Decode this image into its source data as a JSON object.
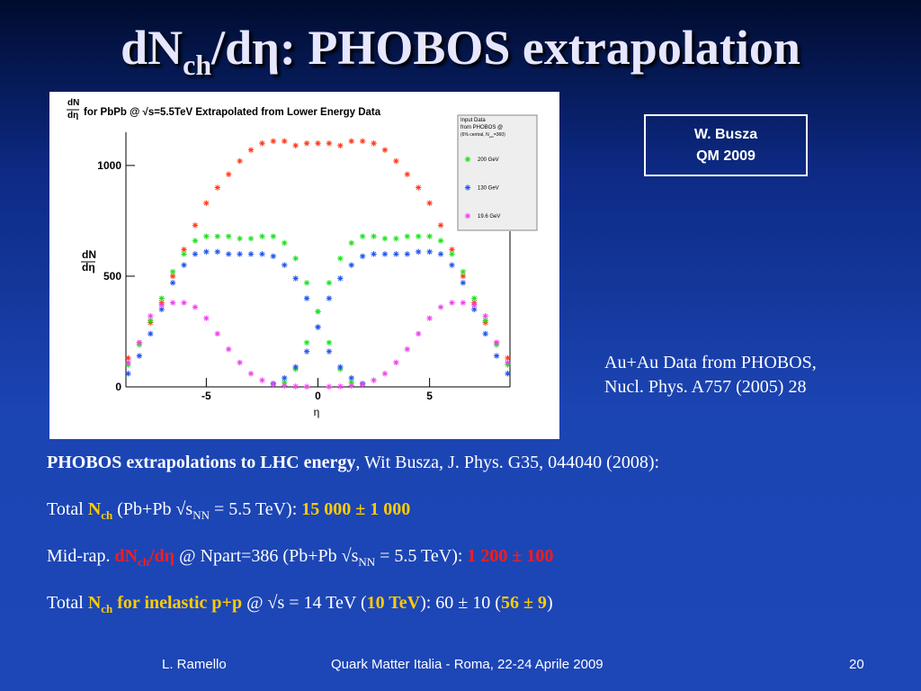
{
  "slide": {
    "title": [
      "dN",
      "ch",
      "/dη: PHOBOS extrapolation"
    ],
    "source_box": [
      "W. Busza",
      "QM 2009"
    ],
    "caption": [
      "Au+Au Data from PHOBOS,",
      "Nucl. Phys. A757 (2005) 28"
    ],
    "lines": [
      [
        "PHOBOS extrapolations to LHC energy",
        ", Wit Busza, J. Phys. G35, 044040 (2008):"
      ],
      [
        "Total ",
        "N",
        "ch",
        " (Pb+Pb √s",
        "NN",
        " = 5.5 TeV): ",
        "15 000 ± 1 000"
      ],
      [
        "Mid-rap. ",
        "dN",
        "ch",
        "/dη",
        " @ Npart=386 (Pb+Pb √s",
        "NN",
        " = 5.5 TeV): ",
        "1 200 ± 100"
      ],
      [
        "Total ",
        "N",
        "ch",
        " for inelastic p+p",
        " @ √s = 14 TeV (",
        "10 TeV",
        "): 60 ± 10 (",
        "56 ± 9",
        ")"
      ]
    ],
    "footer": [
      "L. Ramello",
      "Quark Matter Italia  - Roma, 22-24 Aprile 2009",
      "20"
    ]
  },
  "chart_data": {
    "type": "scatter",
    "title_prefix": [
      "dN",
      "dη"
    ],
    "title": "for PbPb @ √s=5.5TeV Extrapolated from Lower Energy Data",
    "ylabel": [
      "dN",
      "dη"
    ],
    "xlabel": "η",
    "legend_title": [
      "Input Data",
      "from PHOBOS @",
      "(6% central, N",
      "part",
      "=360)"
    ],
    "legend": "upper right",
    "xlim": [
      -8.6,
      8.6
    ],
    "ylim": [
      0,
      1150
    ],
    "xticks": [
      -5,
      0,
      5
    ],
    "yticks": [
      0,
      500,
      1000
    ],
    "series": [
      {
        "color": "#ff3b1a",
        "x": [
          -8.5,
          -8,
          -7.5,
          -7,
          -6.5,
          -6,
          -5.5,
          -5,
          -4.5,
          -4,
          -3.5,
          -3,
          -2.5,
          -2,
          -1.5,
          -1,
          -0.5,
          0,
          0.5,
          1,
          1.5,
          2,
          2.5,
          3,
          3.5,
          4,
          4.5,
          5,
          5.5,
          6,
          6.5,
          7,
          7.5,
          8,
          8.5
        ],
        "values": [
          130,
          200,
          290,
          380,
          500,
          620,
          730,
          830,
          900,
          960,
          1020,
          1070,
          1100,
          1110,
          1110,
          1090,
          1100,
          1100,
          1100,
          1090,
          1110,
          1110,
          1100,
          1070,
          1020,
          960,
          900,
          830,
          730,
          620,
          500,
          380,
          290,
          200,
          130
        ]
      },
      {
        "name": "200 GeV",
        "color": "#22e022",
        "x": [
          -8.5,
          -8,
          -7.5,
          -7,
          -6.5,
          -6,
          -5.5,
          -5,
          -4.5,
          -4,
          -3.5,
          -3,
          -2.5,
          -2,
          -1.5,
          -1,
          -0.5,
          0,
          0.5,
          1,
          1.5,
          8.5,
          8,
          7.5,
          7,
          6.5,
          6,
          5.5,
          5,
          4.5,
          4,
          3.5,
          3,
          2.5,
          2,
          1.5,
          1,
          0.5,
          0,
          -0.5,
          -1,
          -1.5
        ],
        "values": [
          100,
          190,
          300,
          400,
          520,
          600,
          660,
          680,
          680,
          680,
          670,
          670,
          680,
          680,
          650,
          580,
          470,
          340,
          200,
          80,
          20,
          100,
          190,
          300,
          400,
          520,
          600,
          660,
          680,
          680,
          680,
          670,
          670,
          680,
          680,
          650,
          580,
          470,
          340,
          200,
          80,
          20
        ]
      },
      {
        "name": "130 GeV",
        "color": "#2255ee",
        "x": [
          -8.5,
          -8,
          -7.5,
          -7,
          -6.5,
          -6,
          -5.5,
          -5,
          -4.5,
          -4,
          -3.5,
          -3,
          -2.5,
          -2,
          -1.5,
          -1,
          -0.5,
          0,
          0.5,
          1,
          1.5,
          2,
          8.5,
          8,
          7.5,
          7,
          6.5,
          6,
          5.5,
          5,
          4.5,
          4,
          3.5,
          3,
          2.5,
          2,
          1.5,
          1,
          0.5,
          0,
          -0.5,
          -1,
          -1.5,
          -2
        ],
        "values": [
          60,
          140,
          240,
          350,
          470,
          550,
          600,
          610,
          610,
          600,
          600,
          600,
          600,
          590,
          550,
          490,
          400,
          270,
          160,
          90,
          40,
          15,
          60,
          140,
          240,
          350,
          470,
          550,
          600,
          610,
          610,
          600,
          600,
          600,
          600,
          590,
          550,
          490,
          400,
          270,
          160,
          90,
          40,
          15
        ]
      },
      {
        "name": "19.6 GeV",
        "color": "#ee44ee",
        "x": [
          -8.5,
          -8,
          -7.5,
          -7,
          -6.5,
          -6,
          -5.5,
          -5,
          -4.5,
          -4,
          -3.5,
          -3,
          -2.5,
          -2,
          -1.5,
          -1,
          -0.5,
          8.5,
          8,
          7.5,
          7,
          6.5,
          6,
          5.5,
          5,
          4.5,
          4,
          3.5,
          3,
          2.5,
          2,
          1.5,
          1,
          0.5
        ],
        "values": [
          110,
          200,
          320,
          370,
          380,
          380,
          360,
          310,
          240,
          170,
          110,
          60,
          30,
          12,
          5,
          2,
          1,
          110,
          200,
          320,
          370,
          380,
          380,
          360,
          310,
          240,
          170,
          110,
          60,
          30,
          12,
          5,
          2,
          1
        ]
      }
    ]
  }
}
